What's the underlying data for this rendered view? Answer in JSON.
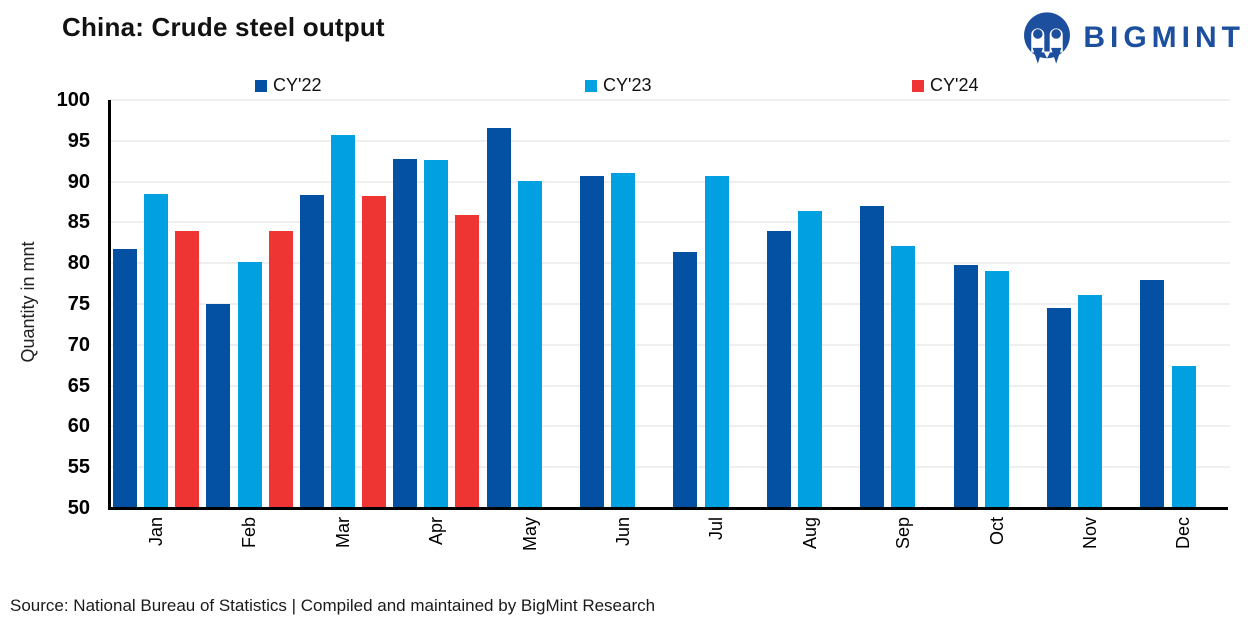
{
  "title": "China: Crude steel output",
  "logo": {
    "brand": "BIGMINT",
    "color": "#1C4F9E"
  },
  "source_note": "Source: National Bureau of Statistics | Compiled and maintained by BigMint Research",
  "chart_data": {
    "type": "bar",
    "title": "China: Crude steel output",
    "xlabel": "",
    "ylabel": "Quantity in mnt",
    "ylim": [
      50,
      100
    ],
    "ytick_step": 5,
    "grid": "horizontal-light",
    "legend_position": "top",
    "categories": [
      "Jan",
      "Feb",
      "Mar",
      "Apr",
      "May",
      "Jun",
      "Jul",
      "Aug",
      "Sep",
      "Oct",
      "Nov",
      "Dec"
    ],
    "series": [
      {
        "name": "CY'22",
        "color": "#0450A2",
        "values": [
          81.7,
          75.0,
          88.3,
          92.8,
          96.6,
          90.7,
          81.4,
          83.9,
          87.0,
          79.8,
          74.5,
          77.9
        ]
      },
      {
        "name": "CY'23",
        "color": "#00A0E1",
        "values": [
          88.5,
          80.1,
          95.7,
          92.6,
          90.1,
          91.1,
          90.7,
          86.4,
          82.1,
          79.1,
          76.1,
          67.4
        ]
      },
      {
        "name": "CY'24",
        "color": "#EE3534",
        "values": [
          84.0,
          84.0,
          88.2,
          85.9,
          null,
          null,
          null,
          null,
          null,
          null,
          null,
          null
        ]
      }
    ]
  }
}
